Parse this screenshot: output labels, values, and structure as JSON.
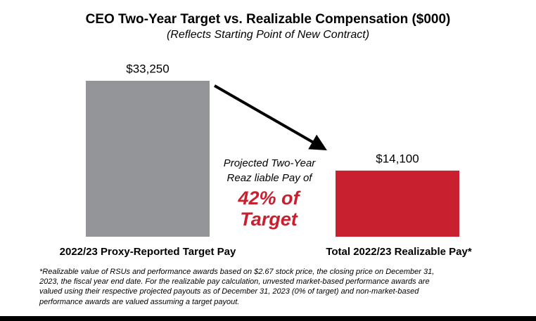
{
  "chart_data": {
    "type": "bar",
    "title": "CEO Two-Year Target vs. Realizable Compensation ($000)",
    "subtitle": "(Reflects Starting Point of New Contract)",
    "categories": [
      "2022/23 Proxy-Reported Target Pay",
      "Total 2022/23 Realizable Pay*"
    ],
    "values": [
      33250,
      14100
    ],
    "value_labels": [
      "$33,250",
      "$14,100"
    ],
    "colors": [
      "#939598",
      "#c8202f"
    ],
    "annotation": [
      "Projected Two-Year",
      "Reaz liable Pay of",
      "42% of",
      "Target"
    ],
    "footnote": [
      "*Realizable value of RSUs and performance  awards based on $2.67 stock price, the closing price on December 31,",
      "2023, the fiscal year end date. For the realizable pay calculation, unvested market-based performance awards are",
      "valued using their respective projected payouts as of December  31, 2023 (0% of target) and non-market-based",
      "performance  awards are valued assuming a target payout."
    ]
  }
}
